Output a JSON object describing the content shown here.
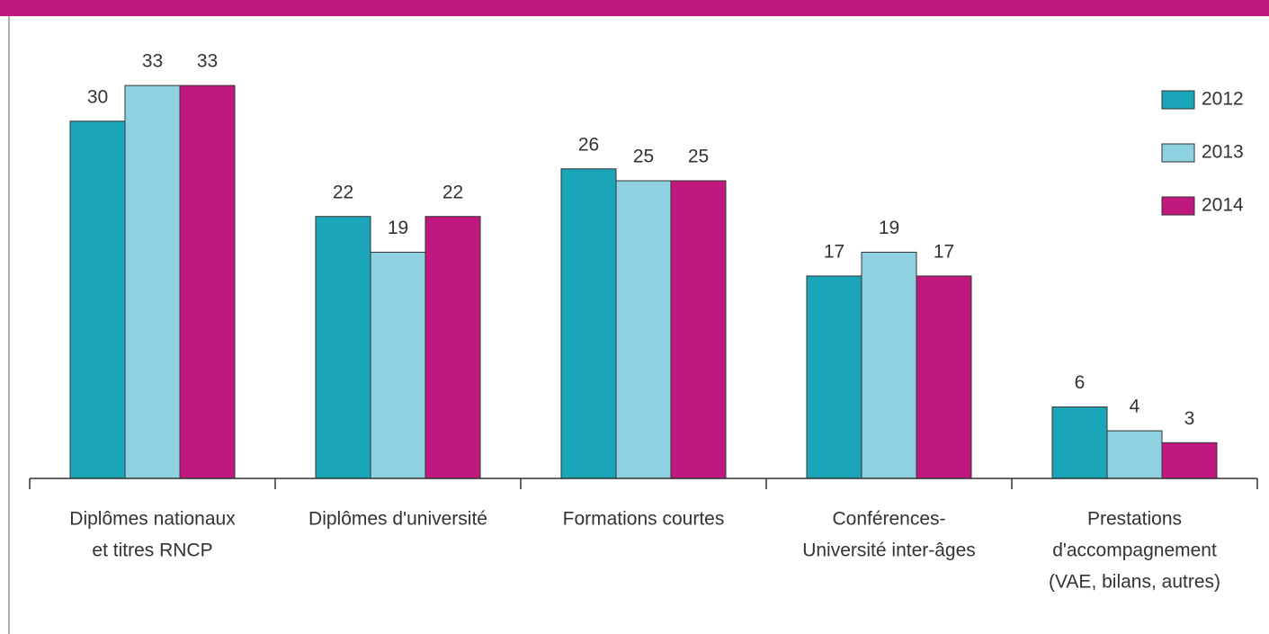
{
  "chart_data": {
    "type": "bar",
    "categories": [
      [
        "Diplômes nationaux",
        "et titres RNCP"
      ],
      [
        "Diplômes d'université"
      ],
      [
        "Formations courtes"
      ],
      [
        "Conférences-",
        "Université inter-âges"
      ],
      [
        "Prestations",
        "d'accompagnement",
        "(VAE, bilans, autres)"
      ]
    ],
    "series": [
      {
        "name": "2012",
        "color": "#1ba5b8",
        "values": [
          30,
          22,
          26,
          17,
          6
        ]
      },
      {
        "name": "2013",
        "color": "#8ed2e2",
        "values": [
          33,
          19,
          25,
          19,
          4
        ]
      },
      {
        "name": "2014",
        "color": "#c0187e",
        "values": [
          33,
          22,
          25,
          17,
          3
        ]
      }
    ],
    "legend": "upper right"
  }
}
